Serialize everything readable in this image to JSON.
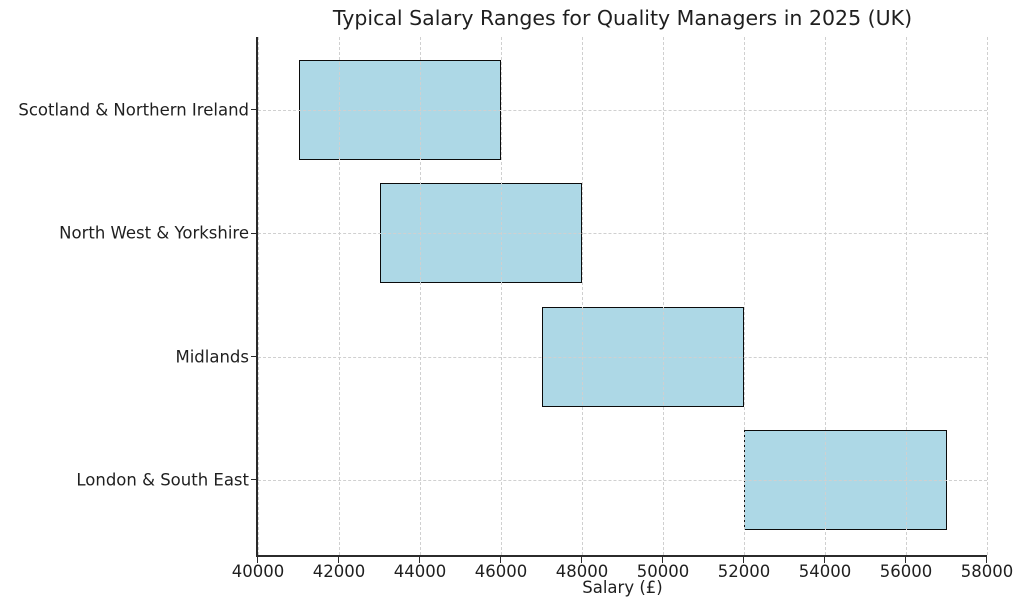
{
  "chart_data": {
    "type": "bar",
    "orientation": "horizontal-range",
    "title": "Typical Salary Ranges for Quality Managers in 2025 (UK)",
    "xlabel": "Salary (£)",
    "categories": [
      "Scotland & Northern Ireland",
      "North West & Yorkshire",
      "Midlands",
      "London & South East"
    ],
    "bars": [
      {
        "category": "Scotland & Northern Ireland",
        "low": 41000,
        "high": 46000
      },
      {
        "category": "North West & Yorkshire",
        "low": 43000,
        "high": 48000
      },
      {
        "category": "Midlands",
        "low": 47000,
        "high": 52000
      },
      {
        "category": "London & South East",
        "low": 52000,
        "high": 57000
      }
    ],
    "xlim": [
      40000,
      58000
    ],
    "xticks": [
      40000,
      42000,
      44000,
      46000,
      48000,
      50000,
      52000,
      54000,
      56000,
      58000
    ],
    "grid": "dashed-both-axes-above-bars",
    "legend": "none",
    "colors": {
      "bar_fill": "#ADD8E6",
      "bar_edge": "#0b0b0b",
      "grid": "#d0d0d0",
      "spine": "#2b2b2b",
      "text": "#1f1f1f",
      "background": "#ffffff"
    }
  }
}
